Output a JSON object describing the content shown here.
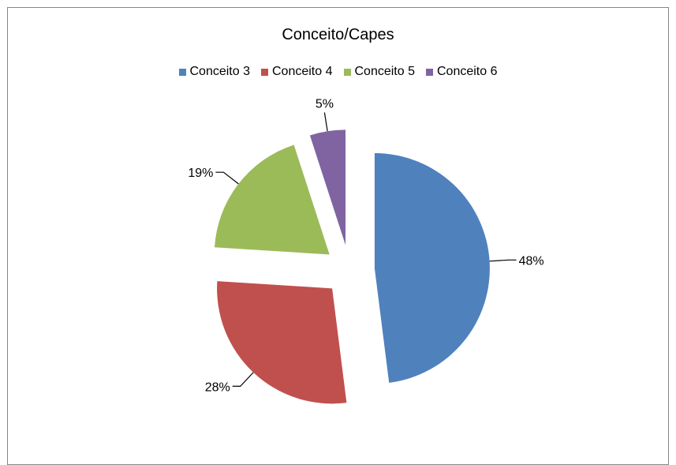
{
  "chart_data": {
    "type": "pie",
    "title": "Conceito/Capes",
    "legend_position": "top",
    "exploded": true,
    "slices": [
      {
        "name": "Conceito 3",
        "value": 48,
        "label": "48%",
        "color": "#4f81bd"
      },
      {
        "name": "Conceito 4",
        "value": 28,
        "label": "28%",
        "color": "#c0504d"
      },
      {
        "name": "Conceito 5",
        "value": 19,
        "label": "19%",
        "color": "#9bbb59"
      },
      {
        "name": "Conceito 6",
        "value": 5,
        "label": "5%",
        "color": "#8064a2"
      }
    ]
  }
}
